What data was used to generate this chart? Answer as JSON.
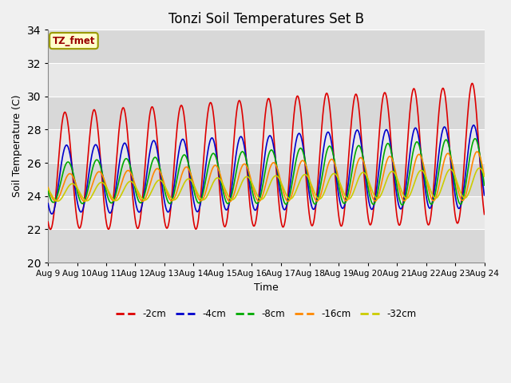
{
  "title": "Tonzi Soil Temperatures Set B",
  "xlabel": "Time",
  "ylabel": "Soil Temperature (C)",
  "ylim": [
    20,
    34
  ],
  "yticks": [
    20,
    22,
    24,
    26,
    28,
    30,
    32,
    34
  ],
  "xtick_labels": [
    "Aug 9",
    "Aug 10",
    "Aug 11",
    "Aug 12",
    "Aug 13",
    "Aug 14",
    "Aug 15",
    "Aug 16",
    "Aug 17",
    "Aug 18",
    "Aug 19",
    "Aug 20",
    "Aug 21",
    "Aug 22",
    "Aug 23",
    "Aug 24"
  ],
  "annotation_text": "TZ_fmet",
  "annotation_color": "#990000",
  "annotation_bg": "#ffffcc",
  "annotation_border": "#999900",
  "series": {
    "-2cm": {
      "color": "#dd0000",
      "linewidth": 1.2
    },
    "-4cm": {
      "color": "#0000cc",
      "linewidth": 1.2
    },
    "-8cm": {
      "color": "#00aa00",
      "linewidth": 1.2
    },
    "-16cm": {
      "color": "#ff8800",
      "linewidth": 1.2
    },
    "-32cm": {
      "color": "#cccc00",
      "linewidth": 1.2
    }
  },
  "band_colors": [
    "#d8d8d8",
    "#e8e8e8"
  ],
  "grid_color": "#ffffff",
  "title_fontsize": 12,
  "axis_label_fontsize": 9,
  "tick_fontsize": 7.5
}
